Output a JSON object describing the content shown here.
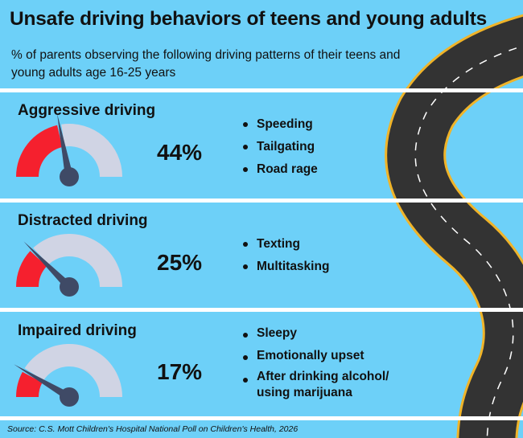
{
  "title": "Unsafe driving behaviors of teens and young adults",
  "subtitle": "% of parents observing the following driving patterns of their teens and young adults age 16-25 years",
  "colors": {
    "background": "#6dd0f8",
    "gauge_fill": "#f5202e",
    "gauge_track": "#d0d4e4",
    "needle": "#3f4a66",
    "road": "#333333",
    "road_edge": "#f0b429"
  },
  "chart_data": {
    "type": "gauge",
    "range": [
      0,
      100
    ],
    "categories": [
      "Aggressive driving",
      "Distracted driving",
      "Impaired driving"
    ],
    "values": [
      44,
      25,
      17
    ],
    "labels": [
      "44%",
      "25%",
      "17%"
    ]
  },
  "sections": [
    {
      "title": "Aggressive driving",
      "value_label": "44%",
      "items": [
        "Speeding",
        "Tailgating",
        "Road rage"
      ]
    },
    {
      "title": "Distracted driving",
      "value_label": "25%",
      "items": [
        "Texting",
        "Multitasking"
      ]
    },
    {
      "title": "Impaired driving",
      "value_label": "17%",
      "items": [
        "Sleepy",
        "Emotionally upset",
        "After drinking alcohol/ using marijuana"
      ]
    }
  ],
  "source": "Source: C.S. Mott Children's Hospital National Poll on Children's Health, 2026"
}
